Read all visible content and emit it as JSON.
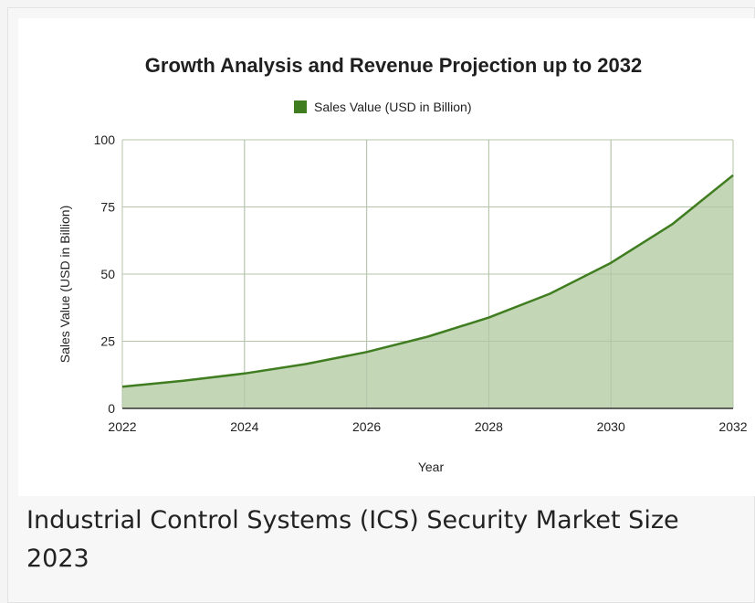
{
  "caption": "Industrial Control Systems (ICS) Security Market Size 2023",
  "chart_data": {
    "type": "area",
    "title": "Growth Analysis and Revenue Projection up to 2032",
    "xlabel": "Year",
    "ylabel": "Sales Value (USD in Billion)",
    "x": [
      2022,
      2023,
      2024,
      2025,
      2026,
      2027,
      2028,
      2029,
      2030,
      2031,
      2032
    ],
    "series": [
      {
        "name": "Sales Value (USD in Billion)",
        "values": [
          8.1,
          10.3,
          13.0,
          16.5,
          21.0,
          26.7,
          33.8,
          42.7,
          54.2,
          68.5,
          86.8
        ],
        "color": "#3f7d20",
        "fill": "#c3d7b7"
      }
    ],
    "x_ticks": [
      "2022",
      "2024",
      "2026",
      "2028",
      "2030",
      "2032"
    ],
    "y_ticks": [
      "0",
      "25",
      "50",
      "75",
      "100"
    ],
    "xlim": [
      2022,
      2032
    ],
    "ylim": [
      0,
      100
    ],
    "grid": true,
    "legend_position": "top-center"
  }
}
